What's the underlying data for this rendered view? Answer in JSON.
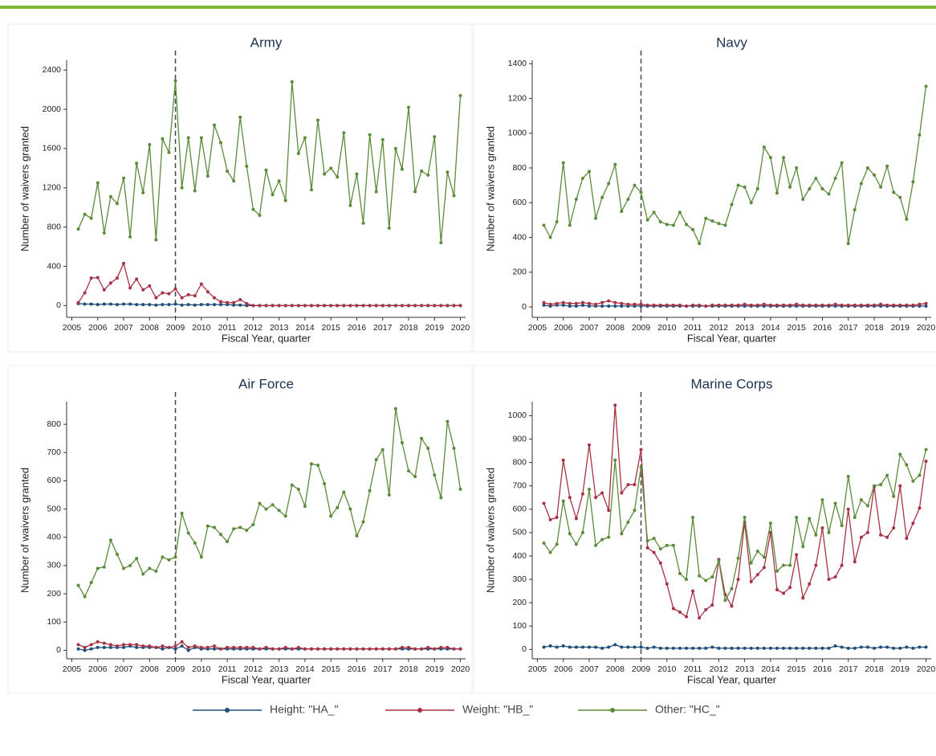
{
  "chart_data": [
    {
      "type": "line",
      "title": "Army",
      "xlabel": "Fiscal Year, quarter",
      "ylabel": "Number of waivers granted",
      "x": [
        2005.25,
        2005.5,
        2005.75,
        2006,
        2006.25,
        2006.5,
        2006.75,
        2007,
        2007.25,
        2007.5,
        2007.75,
        2008,
        2008.25,
        2008.5,
        2008.75,
        2009,
        2009.25,
        2009.5,
        2009.75,
        2010,
        2010.25,
        2010.5,
        2010.75,
        2011,
        2011.25,
        2011.5,
        2011.75,
        2012,
        2012.25,
        2012.5,
        2012.75,
        2013,
        2013.25,
        2013.5,
        2013.75,
        2014,
        2014.25,
        2014.5,
        2014.75,
        2015,
        2015.25,
        2015.5,
        2015.75,
        2016,
        2016.25,
        2016.5,
        2016.75,
        2017,
        2017.25,
        2017.5,
        2017.75,
        2018,
        2018.25,
        2018.5,
        2018.75,
        2019,
        2019.25,
        2019.5,
        2019.75,
        2020
      ],
      "xlim": [
        2004.8,
        2020.2
      ],
      "xticks": [
        2005,
        2006,
        2007,
        2008,
        2009,
        2010,
        2011,
        2012,
        2013,
        2014,
        2015,
        2016,
        2017,
        2018,
        2019,
        2020
      ],
      "ylim": [
        -120,
        2500
      ],
      "yticks": [
        0,
        400,
        800,
        1200,
        1600,
        2000,
        2400
      ],
      "reference_x": 2009,
      "series": [
        {
          "name": "Height: \"HA_\"",
          "color": "#1f4e79",
          "values": [
            20,
            15,
            15,
            10,
            15,
            15,
            10,
            15,
            15,
            10,
            10,
            10,
            5,
            10,
            10,
            15,
            5,
            10,
            5,
            10,
            10,
            10,
            10,
            10,
            5,
            5,
            0,
            0,
            0,
            0,
            0,
            0,
            0,
            0,
            0,
            0,
            0,
            0,
            0,
            0,
            0,
            0,
            0,
            0,
            0,
            0,
            0,
            0,
            0,
            0,
            0,
            0,
            0,
            0,
            0,
            0,
            0,
            0,
            0,
            0
          ]
        },
        {
          "name": "Weight: \"HB_\"",
          "color": "#a83245",
          "values": [
            30,
            130,
            280,
            285,
            160,
            230,
            280,
            430,
            180,
            270,
            160,
            200,
            80,
            130,
            120,
            170,
            80,
            110,
            100,
            220,
            140,
            80,
            40,
            30,
            30,
            60,
            20,
            0,
            0,
            0,
            0,
            0,
            0,
            0,
            0,
            0,
            0,
            0,
            0,
            0,
            0,
            0,
            0,
            0,
            0,
            0,
            0,
            0,
            0,
            0,
            0,
            0,
            0,
            0,
            0,
            0,
            0,
            0,
            0,
            0
          ]
        },
        {
          "name": "Other: \"HC_\"",
          "color": "#5b8c3a",
          "values": [
            780,
            930,
            890,
            1250,
            740,
            1110,
            1040,
            1300,
            700,
            1450,
            1150,
            1640,
            670,
            1700,
            1560,
            2290,
            1200,
            1710,
            1170,
            1710,
            1320,
            1840,
            1660,
            1370,
            1270,
            1920,
            1420,
            980,
            920,
            1380,
            1130,
            1270,
            1070,
            2280,
            1550,
            1710,
            1180,
            1890,
            1340,
            1400,
            1310,
            1760,
            1020,
            1340,
            840,
            1740,
            1160,
            1690,
            790,
            1600,
            1390,
            2020,
            1160,
            1370,
            1330,
            1720,
            640,
            1360,
            1120,
            2140
          ]
        }
      ]
    },
    {
      "type": "line",
      "title": "Navy",
      "xlabel": "Fiscal Year, quarter",
      "ylabel": "Number of waivers granted",
      "x": [
        2005.25,
        2005.5,
        2005.75,
        2006,
        2006.25,
        2006.5,
        2006.75,
        2007,
        2007.25,
        2007.5,
        2007.75,
        2008,
        2008.25,
        2008.5,
        2008.75,
        2009,
        2009.25,
        2009.5,
        2009.75,
        2010,
        2010.25,
        2010.5,
        2010.75,
        2011,
        2011.25,
        2011.5,
        2011.75,
        2012,
        2012.25,
        2012.5,
        2012.75,
        2013,
        2013.25,
        2013.5,
        2013.75,
        2014,
        2014.25,
        2014.5,
        2014.75,
        2015,
        2015.25,
        2015.5,
        2015.75,
        2016,
        2016.25,
        2016.5,
        2016.75,
        2017,
        2017.25,
        2017.5,
        2017.75,
        2018,
        2018.25,
        2018.5,
        2018.75,
        2019,
        2019.25,
        2019.5,
        2019.75,
        2020
      ],
      "xlim": [
        2004.8,
        2020.2
      ],
      "xticks": [
        2005,
        2006,
        2007,
        2008,
        2009,
        2010,
        2011,
        2012,
        2013,
        2014,
        2015,
        2016,
        2017,
        2018,
        2019,
        2020
      ],
      "ylim": [
        -60,
        1420
      ],
      "yticks": [
        0,
        200,
        400,
        600,
        800,
        1000,
        1200,
        1400
      ],
      "reference_x": 2009,
      "series": [
        {
          "name": "Height: \"HA_\"",
          "color": "#1f4e79",
          "values": [
            10,
            5,
            10,
            10,
            5,
            5,
            10,
            5,
            5,
            5,
            5,
            5,
            5,
            5,
            5,
            5,
            5,
            5,
            5,
            5,
            5,
            5,
            5,
            5,
            5,
            5,
            5,
            5,
            5,
            5,
            5,
            5,
            5,
            5,
            5,
            5,
            5,
            5,
            5,
            5,
            5,
            5,
            5,
            5,
            5,
            5,
            5,
            5,
            5,
            5,
            5,
            5,
            5,
            5,
            5,
            5,
            5,
            5,
            5,
            5
          ]
        },
        {
          "name": "Weight: \"HB_\"",
          "color": "#a83245",
          "values": [
            25,
            15,
            20,
            25,
            20,
            20,
            25,
            20,
            15,
            25,
            35,
            25,
            20,
            15,
            15,
            15,
            10,
            10,
            10,
            10,
            10,
            10,
            5,
            10,
            10,
            5,
            10,
            10,
            10,
            10,
            10,
            15,
            10,
            10,
            15,
            10,
            10,
            10,
            10,
            15,
            10,
            10,
            10,
            10,
            10,
            15,
            10,
            10,
            10,
            10,
            10,
            10,
            15,
            10,
            10,
            10,
            10,
            10,
            15,
            20
          ]
        },
        {
          "name": "Other: \"HC_\"",
          "color": "#5b8c3a",
          "values": [
            470,
            400,
            490,
            830,
            470,
            620,
            740,
            780,
            510,
            630,
            710,
            820,
            550,
            620,
            700,
            660,
            500,
            545,
            490,
            475,
            470,
            545,
            475,
            445,
            365,
            510,
            495,
            480,
            470,
            590,
            700,
            690,
            600,
            680,
            920,
            860,
            655,
            860,
            690,
            800,
            620,
            680,
            740,
            680,
            650,
            740,
            830,
            365,
            560,
            710,
            800,
            760,
            690,
            810,
            660,
            630,
            505,
            720,
            990,
            1270
          ]
        }
      ]
    },
    {
      "type": "line",
      "title": "Air Force",
      "xlabel": "Fiscal Year, quarter",
      "ylabel": "Number of waivers granted",
      "x": [
        2005.25,
        2005.5,
        2005.75,
        2006,
        2006.25,
        2006.5,
        2006.75,
        2007,
        2007.25,
        2007.5,
        2007.75,
        2008,
        2008.25,
        2008.5,
        2008.75,
        2009,
        2009.25,
        2009.5,
        2009.75,
        2010,
        2010.25,
        2010.5,
        2010.75,
        2011,
        2011.25,
        2011.5,
        2011.75,
        2012,
        2012.25,
        2012.5,
        2012.75,
        2013,
        2013.25,
        2013.5,
        2013.75,
        2014,
        2014.25,
        2014.5,
        2014.75,
        2015,
        2015.25,
        2015.5,
        2015.75,
        2016,
        2016.25,
        2016.5,
        2016.75,
        2017,
        2017.25,
        2017.5,
        2017.75,
        2018,
        2018.25,
        2018.5,
        2018.75,
        2019,
        2019.25,
        2019.5,
        2019.75,
        2020
      ],
      "xlim": [
        2004.8,
        2020.2
      ],
      "xticks": [
        2005,
        2006,
        2007,
        2008,
        2009,
        2010,
        2011,
        2012,
        2013,
        2014,
        2015,
        2016,
        2017,
        2018,
        2019,
        2020
      ],
      "ylim": [
        -30,
        880
      ],
      "yticks": [
        0,
        100,
        200,
        300,
        400,
        500,
        600,
        700,
        800
      ],
      "reference_x": 2009,
      "series": [
        {
          "name": "Height: \"HA_\"",
          "color": "#1f4e79",
          "values": [
            5,
            0,
            5,
            10,
            10,
            10,
            10,
            10,
            15,
            10,
            10,
            10,
            10,
            5,
            10,
            5,
            15,
            0,
            10,
            5,
            5,
            5,
            5,
            5,
            5,
            5,
            5,
            5,
            5,
            5,
            5,
            5,
            5,
            5,
            5,
            5,
            5,
            5,
            5,
            5,
            5,
            5,
            5,
            5,
            5,
            5,
            5,
            5,
            5,
            5,
            5,
            5,
            5,
            5,
            5,
            5,
            5,
            5,
            5,
            5
          ]
        },
        {
          "name": "Weight: \"HB_\"",
          "color": "#a83245",
          "values": [
            20,
            10,
            20,
            30,
            25,
            20,
            15,
            20,
            20,
            20,
            15,
            15,
            10,
            15,
            10,
            15,
            30,
            10,
            15,
            10,
            10,
            15,
            5,
            10,
            10,
            10,
            10,
            10,
            5,
            10,
            5,
            5,
            10,
            5,
            10,
            5,
            5,
            5,
            5,
            5,
            5,
            5,
            5,
            5,
            5,
            5,
            5,
            5,
            5,
            5,
            10,
            10,
            5,
            5,
            10,
            5,
            10,
            10,
            5,
            5
          ]
        },
        {
          "name": "Other: \"HC_\"",
          "color": "#5b8c3a",
          "values": [
            230,
            190,
            240,
            290,
            295,
            390,
            340,
            290,
            300,
            325,
            270,
            290,
            280,
            330,
            320,
            330,
            485,
            415,
            380,
            330,
            440,
            435,
            410,
            385,
            430,
            435,
            425,
            445,
            520,
            500,
            515,
            495,
            475,
            585,
            570,
            510,
            660,
            655,
            590,
            475,
            505,
            560,
            500,
            405,
            455,
            565,
            675,
            710,
            550,
            855,
            735,
            635,
            615,
            750,
            715,
            620,
            540,
            810,
            715,
            570
          ]
        }
      ]
    },
    {
      "type": "line",
      "title": "Marine Corps",
      "xlabel": "Fiscal Year, quarter",
      "ylabel": "Number of waivers granted",
      "x": [
        2005.25,
        2005.5,
        2005.75,
        2006,
        2006.25,
        2006.5,
        2006.75,
        2007,
        2007.25,
        2007.5,
        2007.75,
        2008,
        2008.25,
        2008.5,
        2008.75,
        2009,
        2009.25,
        2009.5,
        2009.75,
        2010,
        2010.25,
        2010.5,
        2010.75,
        2011,
        2011.25,
        2011.5,
        2011.75,
        2012,
        2012.25,
        2012.5,
        2012.75,
        2013,
        2013.25,
        2013.5,
        2013.75,
        2014,
        2014.25,
        2014.5,
        2014.75,
        2015,
        2015.25,
        2015.5,
        2015.75,
        2016,
        2016.25,
        2016.5,
        2016.75,
        2017,
        2017.25,
        2017.5,
        2017.75,
        2018,
        2018.25,
        2018.5,
        2018.75,
        2019,
        2019.25,
        2019.5,
        2019.75,
        2020
      ],
      "xlim": [
        2004.8,
        2020.2
      ],
      "xticks": [
        2005,
        2006,
        2007,
        2008,
        2009,
        2010,
        2011,
        2012,
        2013,
        2014,
        2015,
        2016,
        2017,
        2018,
        2019,
        2020
      ],
      "ylim": [
        -40,
        1060
      ],
      "yticks": [
        0,
        100,
        200,
        300,
        400,
        500,
        600,
        700,
        800,
        900,
        1000
      ],
      "reference_x": 2009,
      "series": [
        {
          "name": "Height: \"HA_\"",
          "color": "#1f4e79",
          "values": [
            10,
            15,
            10,
            15,
            10,
            10,
            10,
            10,
            10,
            5,
            10,
            20,
            10,
            10,
            10,
            10,
            5,
            10,
            5,
            5,
            5,
            5,
            5,
            5,
            5,
            5,
            10,
            5,
            5,
            5,
            5,
            5,
            5,
            5,
            5,
            5,
            5,
            5,
            5,
            5,
            5,
            5,
            5,
            5,
            5,
            15,
            10,
            5,
            5,
            10,
            10,
            5,
            10,
            10,
            5,
            5,
            10,
            5,
            10,
            10
          ]
        },
        {
          "name": "Weight: \"HB_\"",
          "color": "#a83245",
          "values": [
            625,
            555,
            565,
            810,
            650,
            560,
            665,
            875,
            650,
            670,
            595,
            1045,
            670,
            705,
            705,
            855,
            435,
            415,
            370,
            280,
            175,
            160,
            140,
            250,
            135,
            170,
            190,
            385,
            235,
            185,
            300,
            545,
            290,
            320,
            350,
            500,
            255,
            240,
            265,
            405,
            220,
            280,
            360,
            520,
            300,
            310,
            360,
            600,
            375,
            480,
            500,
            695,
            490,
            480,
            520,
            700,
            475,
            540,
            605,
            805
          ]
        },
        {
          "name": "Other: \"HC_\"",
          "color": "#5b8c3a",
          "values": [
            455,
            415,
            450,
            635,
            495,
            450,
            500,
            685,
            445,
            470,
            480,
            810,
            495,
            545,
            595,
            780,
            465,
            475,
            430,
            445,
            445,
            325,
            300,
            565,
            315,
            295,
            310,
            380,
            210,
            260,
            390,
            565,
            370,
            420,
            395,
            540,
            335,
            360,
            360,
            565,
            440,
            560,
            490,
            640,
            500,
            625,
            530,
            740,
            565,
            640,
            615,
            700,
            705,
            745,
            655,
            835,
            790,
            720,
            745,
            855
          ]
        }
      ]
    }
  ]
}
